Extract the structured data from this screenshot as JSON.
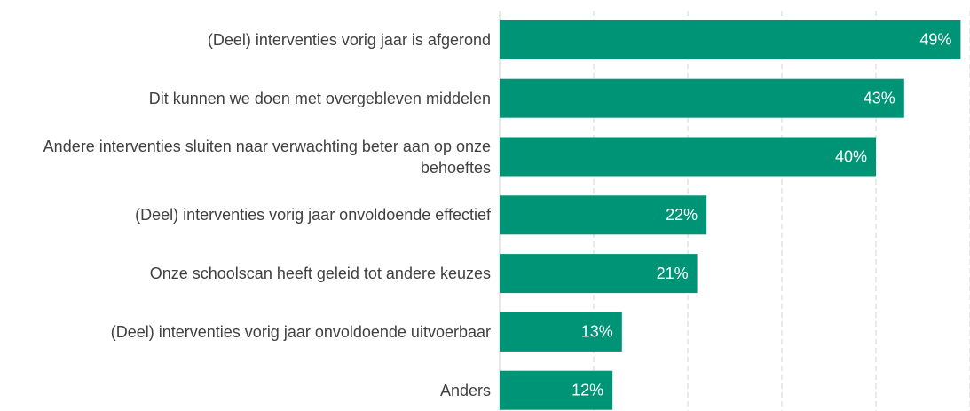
{
  "chart_data": {
    "type": "bar",
    "orientation": "horizontal",
    "categories": [
      "(Deel) interventies vorig jaar is afgerond",
      "Dit kunnen we doen met overgebleven middelen",
      "Andere interventies sluiten naar verwachting beter aan op onze behoeftes",
      "(Deel) interventies vorig jaar onvoldoende effectief",
      "Onze schoolscan heeft geleid tot andere keuzes",
      "(Deel) interventies vorig jaar onvoldoende uitvoerbaar",
      "Anders"
    ],
    "values": [
      49,
      43,
      40,
      22,
      21,
      13,
      12
    ],
    "value_labels": [
      "49%",
      "43%",
      "40%",
      "22%",
      "21%",
      "13%",
      "12%"
    ],
    "color": "#009476",
    "xlim": [
      0,
      50
    ],
    "xticks": [
      0,
      10,
      20,
      30,
      40,
      50
    ],
    "grid": true
  }
}
